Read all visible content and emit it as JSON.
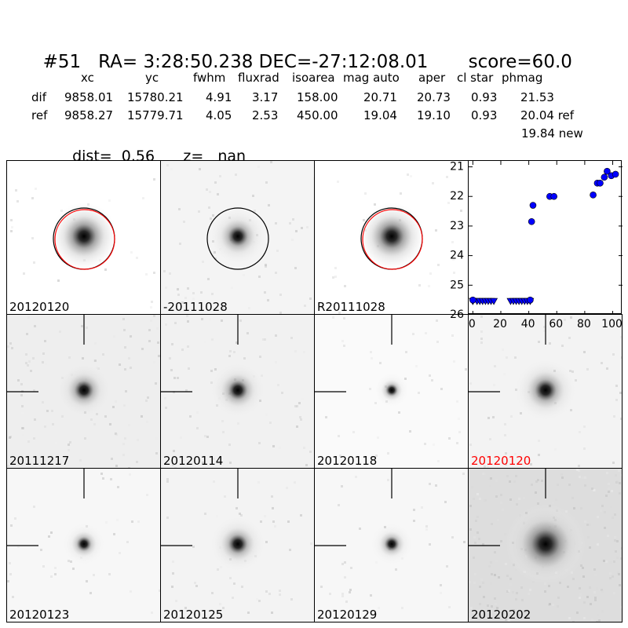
{
  "header": {
    "id": "#51",
    "ra": "RA= 3:28:50.238",
    "dec": "DEC=-27:12:08.01",
    "score": "score=60.0"
  },
  "stats": {
    "columns": [
      "xc",
      "yc",
      "fwhm",
      "fluxrad",
      "isoarea",
      "mag auto",
      "aper",
      "cl star",
      "phmag"
    ],
    "rows": [
      {
        "name": "dif",
        "values": [
          "9858.01",
          "15780.21",
          "4.91",
          "3.17",
          "158.00",
          "20.71",
          "20.73",
          "0.93",
          "21.53"
        ]
      },
      {
        "name": "ref",
        "values": [
          "9858.27",
          "15779.71",
          "4.05",
          "2.53",
          "450.00",
          "19.04",
          "19.10",
          "0.93",
          "20.04 ref"
        ]
      }
    ],
    "extra": "19.84 new",
    "dist": "dist=  0.56",
    "z": "z=   nan"
  },
  "panels": [
    {
      "label": "20120120",
      "label_color": "#000000",
      "bg": "#ffffff",
      "core_size": 1.0,
      "halo": 0.55,
      "noise": 0.02,
      "circle": true,
      "red_circle": true,
      "crosshair": false
    },
    {
      "label": "-20111028",
      "label_color": "#000000",
      "bg": "#f4f4f4",
      "core_size": 0.9,
      "halo": 0.35,
      "noise": 0.05,
      "circle": true,
      "red_circle": false,
      "crosshair": false
    },
    {
      "label": "R20111028",
      "label_color": "#000000",
      "bg": "#ffffff",
      "core_size": 1.0,
      "halo": 0.55,
      "noise": 0.02,
      "circle": true,
      "red_circle": true,
      "crosshair": false
    },
    {
      "label": "20111217",
      "label_color": "#000000",
      "bg": "#eeeeee",
      "core_size": 0.9,
      "halo": 0.3,
      "noise": 0.08,
      "circle": false,
      "red_circle": false,
      "crosshair": true
    },
    {
      "label": "20120114",
      "label_color": "#000000",
      "bg": "#f1f1f1",
      "core_size": 0.9,
      "halo": 0.3,
      "noise": 0.06,
      "circle": false,
      "red_circle": false,
      "crosshair": true
    },
    {
      "label": "20120118",
      "label_color": "#000000",
      "bg": "#fafafa",
      "core_size": 0.6,
      "halo": 0.15,
      "noise": 0.03,
      "circle": false,
      "red_circle": false,
      "crosshair": true
    },
    {
      "label": "20120120",
      "label_color": "#ff0000",
      "bg": "#f3f3f3",
      "core_size": 1.0,
      "halo": 0.35,
      "noise": 0.05,
      "circle": false,
      "red_circle": false,
      "crosshair": true
    },
    {
      "label": "20120123",
      "label_color": "#000000",
      "bg": "#f7f7f7",
      "core_size": 0.7,
      "halo": 0.2,
      "noise": 0.03,
      "circle": false,
      "red_circle": false,
      "crosshair": true
    },
    {
      "label": "20120125",
      "label_color": "#000000",
      "bg": "#f3f3f3",
      "core_size": 0.9,
      "halo": 0.3,
      "noise": 0.04,
      "circle": false,
      "red_circle": false,
      "crosshair": true
    },
    {
      "label": "20120129",
      "label_color": "#000000",
      "bg": "#f7f7f7",
      "core_size": 0.7,
      "halo": 0.2,
      "noise": 0.03,
      "circle": false,
      "red_circle": false,
      "crosshair": true
    },
    {
      "label": "20120202",
      "label_color": "#000000",
      "bg": "#dddddd",
      "core_size": 1.2,
      "halo": 0.6,
      "noise": 0.18,
      "circle": false,
      "red_circle": false,
      "crosshair": true
    }
  ],
  "chart_data": {
    "type": "scatter",
    "title": "",
    "xlabel": "",
    "ylabel": "",
    "xlim": [
      -3,
      107
    ],
    "ylim": [
      26,
      20.8
    ],
    "y_inverted": true,
    "xticks": [
      0,
      20,
      40,
      60,
      80,
      100
    ],
    "yticks": [
      21,
      22,
      23,
      24,
      25,
      26
    ],
    "grid": false,
    "marker_color": "#0000ff",
    "series": [
      {
        "x": [
          0,
          0,
          3,
          5,
          7,
          9,
          11,
          13,
          15,
          27,
          29,
          31,
          33,
          35,
          37,
          39,
          41
        ],
        "y": [
          25.55,
          25.55,
          25.55,
          25.55,
          25.55,
          25.55,
          25.55,
          25.55,
          25.55,
          25.55,
          25.55,
          25.55,
          25.55,
          25.55,
          25.55,
          25.55,
          25.55
        ],
        "marker": "triangle-down"
      },
      {
        "x": [
          0,
          41,
          42,
          43,
          55,
          58,
          86,
          89,
          91,
          94,
          96,
          99,
          102
        ],
        "y": [
          25.5,
          25.5,
          22.85,
          22.3,
          22.0,
          22.0,
          21.95,
          21.55,
          21.55,
          21.35,
          21.15,
          21.3,
          21.25
        ],
        "marker": "circle"
      }
    ]
  }
}
